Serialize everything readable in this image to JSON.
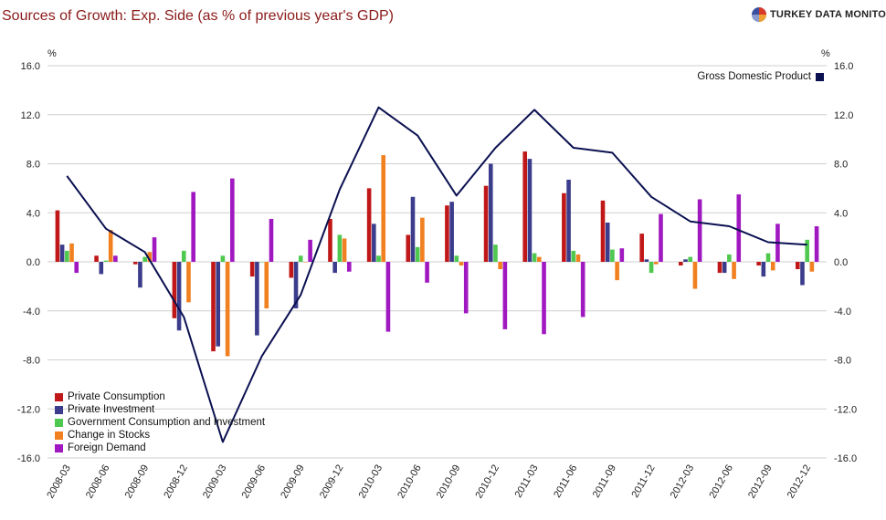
{
  "header": {
    "title": "Sources of Growth: Exp. Side (as % of previous year's GDP)",
    "brand": "TURKEY DATA MONITOR"
  },
  "chart_data": {
    "type": "bar",
    "title": "Sources of Growth: Exp. Side (as % of previous year's GDP)",
    "ylabel_left": "%",
    "ylabel_right": "%",
    "ylim": [
      -16,
      16
    ],
    "yticks": [
      "16.0",
      "12.0",
      "8.0",
      "4.0",
      "0.0",
      "-4.0",
      "-8.0",
      "-12.0",
      "-16.0"
    ],
    "categories": [
      "2008-03",
      "2008-06",
      "2008-09",
      "2008-12",
      "2009-03",
      "2009-06",
      "2009-09",
      "2009-12",
      "2010-03",
      "2010-06",
      "2010-09",
      "2010-12",
      "2011-03",
      "2011-06",
      "2011-09",
      "2011-12",
      "2012-03",
      "2012-06",
      "2012-09",
      "2012-12"
    ],
    "series": [
      {
        "name": "Private Consumption",
        "color": "#c01818",
        "values": [
          4.2,
          0.5,
          -0.2,
          -4.6,
          -7.3,
          -1.2,
          -1.3,
          3.5,
          6.0,
          2.2,
          4.6,
          6.2,
          9.0,
          5.6,
          5.0,
          2.3,
          -0.3,
          -0.9,
          -0.3,
          -0.6
        ]
      },
      {
        "name": "Private Investment",
        "color": "#3c3c8c",
        "values": [
          1.4,
          -1.0,
          -2.1,
          -5.6,
          -6.9,
          -6.0,
          -3.8,
          -0.9,
          3.1,
          5.3,
          4.9,
          8.0,
          8.4,
          6.7,
          3.2,
          0.2,
          0.2,
          -0.9,
          -1.2,
          -1.9
        ]
      },
      {
        "name": "Government Consumption and Investment",
        "color": "#4ec84e",
        "values": [
          0.9,
          0.1,
          0.4,
          0.9,
          0.5,
          0.0,
          0.5,
          2.2,
          0.5,
          1.2,
          0.5,
          1.4,
          0.7,
          0.9,
          1.0,
          -0.9,
          0.4,
          0.6,
          0.7,
          1.8
        ]
      },
      {
        "name": "Change in Stocks",
        "color": "#f08020",
        "values": [
          1.5,
          2.6,
          0.8,
          -3.3,
          -7.7,
          -3.8,
          0.0,
          1.9,
          8.7,
          3.6,
          -0.3,
          -0.6,
          0.4,
          0.6,
          -1.5,
          -0.2,
          -2.2,
          -1.4,
          -0.7,
          -0.8
        ]
      },
      {
        "name": "Foreign Demand",
        "color": "#a018c0",
        "values": [
          -0.9,
          0.5,
          2.0,
          5.7,
          6.8,
          3.5,
          1.8,
          -0.8,
          -5.7,
          -1.7,
          -4.2,
          -5.5,
          -5.9,
          -4.5,
          1.1,
          3.9,
          5.1,
          5.5,
          3.1,
          2.9
        ]
      }
    ],
    "line_series": {
      "name": "Gross Domestic Product",
      "color": "#0a1050",
      "values": [
        7.0,
        2.7,
        0.8,
        -4.5,
        -14.7,
        -7.7,
        -2.7,
        5.9,
        12.6,
        10.3,
        5.4,
        9.3,
        12.4,
        9.3,
        8.9,
        5.3,
        3.3,
        2.9,
        1.6,
        1.4
      ]
    },
    "legend_bottom_left": [
      "Private Consumption",
      "Private Investment",
      "Government Consumption and Investment",
      "Change in Stocks",
      "Foreign Demand"
    ],
    "legend_top_right": "Gross Domestic Product",
    "legend_position": "bottom-left",
    "grid": true
  }
}
